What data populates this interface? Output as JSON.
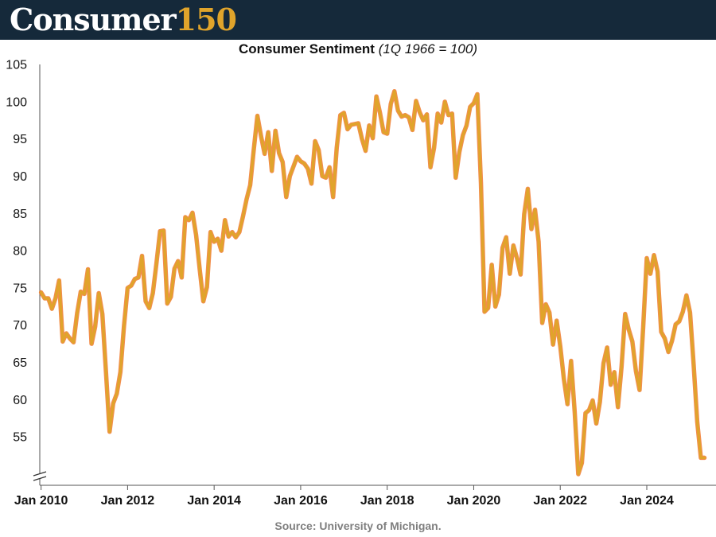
{
  "header": {
    "brand_word": "Consumer",
    "brand_number": "150",
    "brand_word_color": "#ffffff",
    "brand_number_color": "#e0a42b",
    "bar_color": "#15293a"
  },
  "chart_title": {
    "main": "Consumer Sentiment",
    "sub": "(1Q 1966 = 100)"
  },
  "source": {
    "label": "Source",
    "text": ":  University of Michigan."
  },
  "chart_data": {
    "type": "line",
    "title": "Consumer Sentiment (1Q 1966 = 100)",
    "xlabel": "",
    "ylabel": "",
    "ylim": [
      50,
      105
    ],
    "y_axis_break": true,
    "y_ticks": [
      105,
      100,
      95,
      90,
      85,
      80,
      75,
      70,
      65,
      60,
      55
    ],
    "x_ticks": [
      {
        "label": "Jan 2010",
        "t": 2010.0
      },
      {
        "label": "Jan 2012",
        "t": 2012.0
      },
      {
        "label": "Jan 2014",
        "t": 2014.0
      },
      {
        "label": "Jan 2016",
        "t": 2016.0
      },
      {
        "label": "Jan 2018",
        "t": 2018.0
      },
      {
        "label": "Jan 2020",
        "t": 2020.0
      },
      {
        "label": "Jan 2022",
        "t": 2022.0
      },
      {
        "label": "Jan 2024",
        "t": 2024.0
      }
    ],
    "grid": false,
    "line_color": "#e0a42b",
    "highlight_color": "#f07a2e",
    "series": [
      {
        "start": "2010-01",
        "frequency": "monthly",
        "values": [
          74.4,
          73.6,
          73.6,
          72.2,
          73.6,
          76.0,
          67.8,
          68.9,
          68.2,
          67.7,
          71.6,
          74.5,
          74.2,
          77.5,
          67.5,
          69.8,
          74.3,
          71.5,
          63.7,
          55.7,
          59.5,
          60.8,
          63.7,
          69.9,
          75.0,
          75.3,
          76.2,
          76.4,
          79.3,
          73.2,
          72.3,
          74.3,
          78.3,
          82.6,
          82.7,
          72.9,
          73.8,
          77.6,
          78.6,
          76.4,
          84.5,
          84.1,
          85.1,
          82.1,
          77.5,
          73.2,
          75.1,
          82.5,
          81.2,
          81.6,
          80.0,
          84.1,
          81.9,
          82.5,
          81.8,
          82.5,
          84.6,
          86.9,
          88.8,
          93.6,
          98.1,
          95.4,
          93.0,
          95.9,
          90.7,
          96.1,
          93.1,
          91.9,
          87.2,
          90.0,
          91.3,
          92.6,
          92.0,
          91.7,
          91.0,
          89.0,
          94.7,
          93.5,
          90.0,
          89.8,
          91.2,
          87.2,
          93.8,
          98.2,
          98.5,
          96.3,
          96.9,
          97.0,
          97.1,
          95.0,
          93.4,
          96.8,
          95.1,
          100.7,
          98.5,
          95.9,
          95.7,
          99.7,
          101.4,
          98.8,
          98.0,
          98.2,
          97.9,
          96.2,
          100.1,
          98.6,
          97.5,
          98.3,
          91.2,
          93.8,
          98.4,
          97.2,
          100.0,
          98.2,
          98.4,
          89.8,
          93.2,
          95.5,
          96.8,
          99.3,
          99.8,
          101.0,
          89.1,
          71.8,
          72.3,
          78.1,
          72.5,
          74.1,
          80.4,
          81.8,
          76.9,
          80.7,
          79.0,
          76.8,
          84.9,
          88.3,
          82.9,
          85.5,
          81.2,
          70.3,
          72.8,
          71.7,
          67.4,
          70.6,
          67.2,
          62.8,
          59.4,
          65.2,
          58.4,
          50.0,
          51.5,
          58.2,
          58.6,
          59.9,
          56.8,
          59.7,
          64.9,
          67.0,
          62.0,
          63.7,
          59.0,
          64.4,
          71.5,
          69.4,
          67.8,
          63.8,
          61.3,
          69.7,
          79.0,
          76.9,
          79.4,
          77.2,
          69.1,
          68.2,
          66.4,
          67.9,
          70.1,
          70.5,
          71.8,
          74.0,
          71.7,
          64.7,
          57.0,
          52.2,
          52.2
        ]
      }
    ]
  }
}
